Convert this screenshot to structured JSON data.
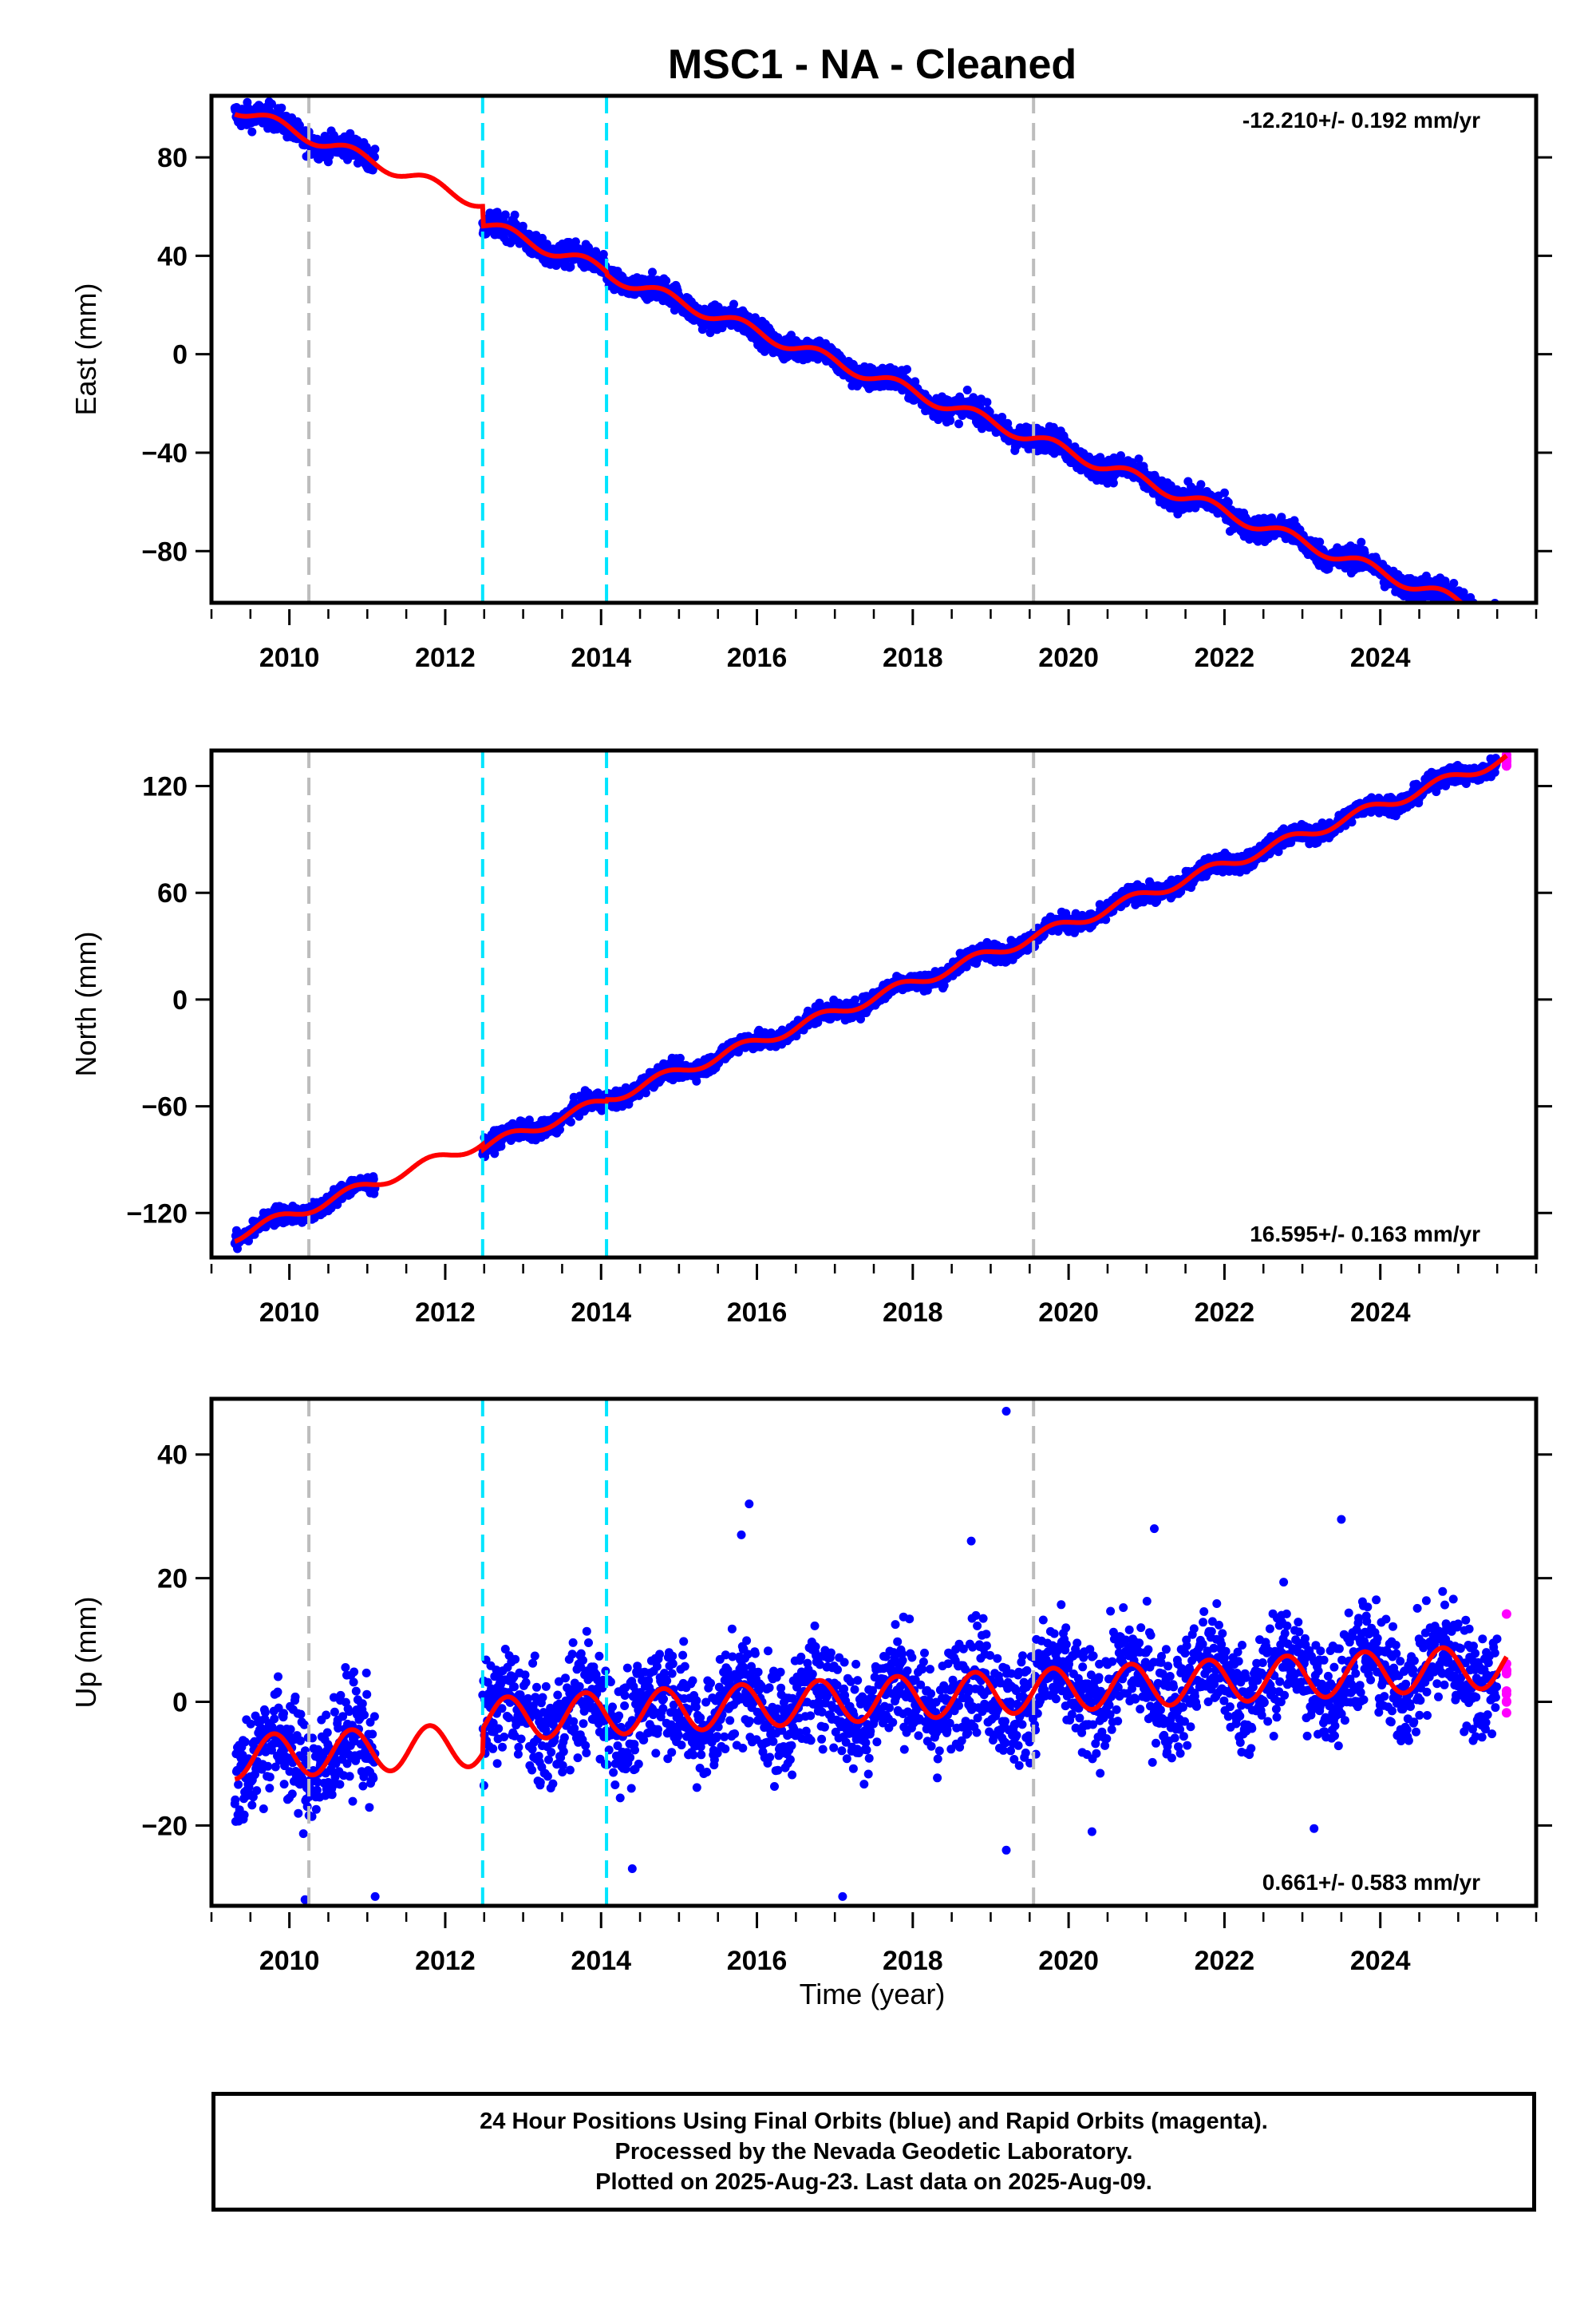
{
  "title": "MSC1  - NA - Cleaned",
  "xlabel": "Time (year)",
  "footer": {
    "line1": "24 Hour Positions Using Final Orbits (blue) and Rapid Orbits (magenta).",
    "line2": "Processed by the Nevada Geodetic Laboratory.",
    "line3": "Plotted on 2025-Aug-23. Last data on 2025-Aug-09."
  },
  "colors": {
    "final_orbits": "#0000ff",
    "rapid_orbits": "#ff00ff",
    "model": "#ff0000",
    "equipment_change": "#bdbdbd",
    "earthquake": "#00e5ff"
  },
  "chart_data": [
    {
      "type": "scatter",
      "panel": "east",
      "ylabel": "East (mm)",
      "xlim": [
        2009.0,
        2026.0
      ],
      "ylim": [
        -101,
        105
      ],
      "xticks": [
        2010,
        2012,
        2014,
        2016,
        2018,
        2020,
        2022,
        2024
      ],
      "yticks": [
        -80,
        -40,
        0,
        40,
        80
      ],
      "rate_text": "-12.210+/- 0.192 mm/yr",
      "rate_position": "top-right",
      "equipment_change_lines": [
        2010.25,
        2019.55
      ],
      "earthquake_lines": [
        2012.48,
        2014.07
      ],
      "final_data_ranges": [
        [
          2009.3,
          2011.1
        ],
        [
          2012.48,
          2025.5
        ]
      ],
      "rapid_data_range": [
        2025.5,
        2025.62
      ],
      "model": {
        "rate": -12.21,
        "t0": 2009.3,
        "y0": 100,
        "seasonal_amplitude": 2.5,
        "offsets": [
          {
            "year": 2012.48,
            "value": -8
          },
          {
            "year": 2014.07,
            "value": -1
          }
        ]
      },
      "scatter_noise": 2.5
    },
    {
      "type": "scatter",
      "panel": "north",
      "ylabel": "North (mm)",
      "xlim": [
        2009.0,
        2026.0
      ],
      "ylim": [
        -145,
        140
      ],
      "xticks": [
        2010,
        2012,
        2014,
        2016,
        2018,
        2020,
        2022,
        2024
      ],
      "yticks": [
        -120,
        -60,
        0,
        60,
        120
      ],
      "rate_text": "16.595+/- 0.163 mm/yr",
      "rate_position": "bottom-right",
      "equipment_change_lines": [
        2010.25,
        2019.55
      ],
      "earthquake_lines": [
        2012.48,
        2014.07
      ],
      "final_data_ranges": [
        [
          2009.3,
          2011.1
        ],
        [
          2012.48,
          2025.5
        ]
      ],
      "rapid_data_range": [
        2025.5,
        2025.62
      ],
      "model": {
        "rate": 16.595,
        "t0": 2009.3,
        "y0": -133,
        "seasonal_amplitude": 3,
        "offsets": [
          {
            "year": 2012.48,
            "value": -3
          },
          {
            "year": 2014.07,
            "value": 1
          }
        ]
      },
      "scatter_noise": 2.5
    },
    {
      "type": "scatter",
      "panel": "up",
      "ylabel": "Up (mm)",
      "xlim": [
        2009.0,
        2026.0
      ],
      "ylim": [
        -33,
        49
      ],
      "xticks": [
        2010,
        2012,
        2014,
        2016,
        2018,
        2020,
        2022,
        2024
      ],
      "yticks": [
        -20,
        0,
        20,
        40
      ],
      "rate_text": "0.661+/- 0.583 mm/yr",
      "rate_position": "bottom-right",
      "equipment_change_lines": [
        2010.25,
        2019.55
      ],
      "earthquake_lines": [
        2012.48,
        2014.07
      ],
      "final_data_ranges": [
        [
          2009.3,
          2011.1
        ],
        [
          2012.48,
          2025.5
        ]
      ],
      "rapid_data_range": [
        2025.5,
        2025.62
      ],
      "model": {
        "rate": 0.661,
        "t0": 2009.3,
        "y0": -9,
        "seasonal_amplitude": 3.5,
        "offsets": [
          {
            "year": 2012.48,
            "value": 4
          },
          {
            "year": 2014.07,
            "value": 0
          }
        ]
      },
      "scatter_noise": 4.5,
      "outliers": [
        [
          2019.2,
          47
        ],
        [
          2015.9,
          32
        ],
        [
          2023.5,
          29.5
        ],
        [
          2021.1,
          28
        ],
        [
          2018.75,
          26
        ],
        [
          2015.8,
          27
        ],
        [
          2010.2,
          -32
        ],
        [
          2011.1,
          -31.5
        ],
        [
          2017.1,
          -31.5
        ],
        [
          2014.4,
          -27
        ],
        [
          2019.2,
          -24
        ],
        [
          2023.15,
          -20.5
        ],
        [
          2020.3,
          -21
        ]
      ]
    }
  ]
}
